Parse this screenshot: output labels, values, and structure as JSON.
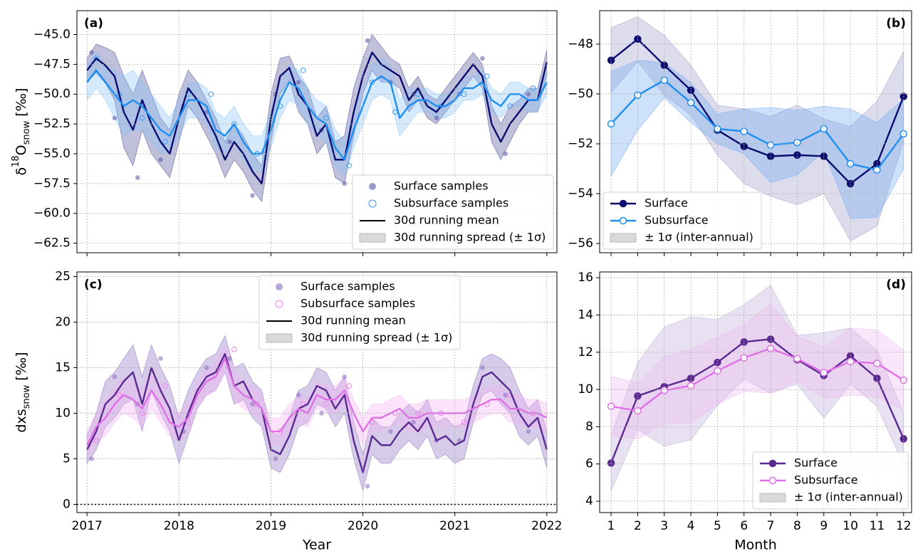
{
  "chart_data": [
    {
      "type": "line",
      "panel": "(a)",
      "ylabel": {
        "main": "δ",
        "sup": "18",
        "base": "O",
        "sub": "snow",
        "unit": "[‰]"
      },
      "xlim": [
        2016.89,
        2022.11
      ],
      "ylim": [
        -63.3,
        -43.0
      ],
      "xticks": [
        2017,
        2018,
        2019,
        2020,
        2021,
        2022
      ],
      "yticks": [
        {
          "value": -62.5,
          "label": "−62.5"
        },
        {
          "value": -60,
          "label": "−60.0"
        },
        {
          "value": -57.5,
          "label": "−57.5"
        },
        {
          "value": -55,
          "label": "−55.0"
        },
        {
          "value": -52.5,
          "label": "−52.5"
        },
        {
          "value": -50,
          "label": "−50.0"
        },
        {
          "value": -47.5,
          "label": "−47.5"
        },
        {
          "value": -45,
          "label": "−45.0"
        }
      ],
      "grid": true,
      "legend": "lower right",
      "mean_label": "30d running mean",
      "spread_label": "30d running spread (± 1σ)",
      "samples": [
        {
          "name": "Surface samples",
          "color": "#5a55a8",
          "marker": "filled",
          "x": [
            2017.05,
            2017.3,
            2017.55,
            2017.8,
            2018.05,
            2018.3,
            2018.55,
            2018.8,
            2019.05,
            2019.3,
            2019.55,
            2019.8,
            2020.05,
            2020.3,
            2020.55,
            2020.8,
            2021.05,
            2021.3,
            2021.55,
            2021.8
          ],
          "values": [
            -46.5,
            -52,
            -57,
            -55.5,
            -51,
            -51.5,
            -54,
            -58.5,
            -50,
            -49,
            -53,
            -57.5,
            -45.5,
            -49,
            -50,
            -52,
            -50,
            -47,
            -55,
            -50
          ]
        },
        {
          "name": "Subsurface samples",
          "color": "#3a9cf0",
          "marker": "open",
          "x": [
            2017.1,
            2017.35,
            2017.6,
            2017.85,
            2018.1,
            2018.35,
            2018.6,
            2018.85,
            2019.1,
            2019.35,
            2019.6,
            2019.85,
            2020.1,
            2020.35,
            2020.6,
            2020.85,
            2021.1,
            2021.35,
            2021.6,
            2021.85
          ],
          "values": [
            -47,
            -50,
            -52,
            -54,
            -50,
            -50,
            -52.5,
            -55,
            -51,
            -48,
            -52,
            -56,
            -49,
            -51.5,
            -50,
            -51,
            -50,
            -48.5,
            -51,
            -49.5
          ]
        }
      ],
      "x": [
        2017.0,
        2017.1,
        2017.2,
        2017.3,
        2017.4,
        2017.5,
        2017.6,
        2017.7,
        2017.8,
        2017.9,
        2018.0,
        2018.1,
        2018.2,
        2018.3,
        2018.4,
        2018.5,
        2018.6,
        2018.7,
        2018.8,
        2018.9,
        2019.0,
        2019.1,
        2019.2,
        2019.3,
        2019.4,
        2019.5,
        2019.6,
        2019.7,
        2019.8,
        2019.9,
        2020.0,
        2020.1,
        2020.2,
        2020.3,
        2020.4,
        2020.5,
        2020.6,
        2020.7,
        2020.8,
        2020.9,
        2021.0,
        2021.1,
        2021.2,
        2021.3,
        2021.4,
        2021.5,
        2021.6,
        2021.7,
        2021.8,
        2021.9,
        2022.0
      ],
      "series": [
        {
          "color": "#0c0c6e",
          "band_color": "#4a4a99",
          "values": [
            -48.0,
            -47.0,
            -47.6,
            -48.5,
            -51.5,
            -53.0,
            -50.5,
            -52.5,
            -54.0,
            -55.0,
            -52.0,
            -49.5,
            -50.5,
            -52.0,
            -53.5,
            -55.5,
            -54.0,
            -55.0,
            -56.5,
            -57.5,
            -52.0,
            -48.5,
            -47.8,
            -50.0,
            -51.0,
            -53.5,
            -52.5,
            -55.5,
            -55.5,
            -51.5,
            -48.5,
            -46.5,
            -47.5,
            -48.0,
            -48.5,
            -50.5,
            -49.5,
            -51.0,
            -51.5,
            -50.5,
            -49.5,
            -48.5,
            -47.5,
            -48.5,
            -52.5,
            -54.0,
            -52.5,
            -51.5,
            -50.5,
            -50.5,
            -47.3
          ],
          "sigma": [
            1.0,
            1.2,
            1.5,
            2.0,
            3.0,
            3.0,
            2.5,
            2.5,
            2.0,
            2.0,
            2.0,
            1.5,
            1.5,
            1.5,
            1.5,
            1.5,
            1.5,
            1.5,
            1.5,
            1.5,
            2.0,
            1.5,
            1.0,
            1.5,
            1.5,
            1.5,
            1.5,
            1.5,
            2.0,
            2.0,
            1.5,
            1.5,
            1.5,
            1.0,
            1.0,
            1.0,
            1.0,
            1.0,
            1.0,
            1.0,
            1.0,
            1.0,
            1.0,
            1.0,
            1.5,
            1.5,
            1.5,
            1.0,
            1.0,
            1.0,
            1.0
          ]
        },
        {
          "color": "#1e8ff0",
          "band_color": "#87c4f5",
          "values": [
            -49.0,
            -48.0,
            -49.0,
            -50.0,
            -51.0,
            -50.5,
            -51.0,
            -52.0,
            -53.0,
            -53.5,
            -52.0,
            -50.5,
            -50.5,
            -51.0,
            -53.0,
            -53.5,
            -52.5,
            -54.0,
            -55.0,
            -55.0,
            -53.0,
            -50.5,
            -49.0,
            -49.5,
            -51.0,
            -52.0,
            -52.5,
            -54.5,
            -55.5,
            -53.0,
            -51.0,
            -49.0,
            -48.5,
            -49.0,
            -52.0,
            -51.0,
            -50.5,
            -50.5,
            -51.0,
            -51.0,
            -50.5,
            -49.5,
            -49.5,
            -49.0,
            -50.5,
            -51.0,
            -50.0,
            -50.0,
            -50.5,
            -50.5,
            -49.0
          ],
          "sigma": [
            1.5,
            1.5,
            1.5,
            2.0,
            2.5,
            2.5,
            2.0,
            2.0,
            2.0,
            1.5,
            1.5,
            1.5,
            1.5,
            1.5,
            1.5,
            1.5,
            1.5,
            1.5,
            1.5,
            1.5,
            1.5,
            1.5,
            1.5,
            1.5,
            1.5,
            1.5,
            1.5,
            1.5,
            1.5,
            1.5,
            1.5,
            1.5,
            1.5,
            1.5,
            1.5,
            1.5,
            1.0,
            1.0,
            1.0,
            1.0,
            1.0,
            1.0,
            1.0,
            1.0,
            1.0,
            1.0,
            1.0,
            1.0,
            1.0,
            1.0,
            1.0
          ]
        }
      ]
    },
    {
      "type": "line",
      "panel": "(b)",
      "xlim": [
        0.57,
        12.3
      ],
      "ylim": [
        -56.37,
        -46.66
      ],
      "xticks": [
        1,
        2,
        3,
        4,
        5,
        6,
        7,
        8,
        9,
        10,
        11,
        12
      ],
      "yticks": [
        {
          "value": -56,
          "label": "−56"
        },
        {
          "value": -54,
          "label": "−54"
        },
        {
          "value": -52,
          "label": "−52"
        },
        {
          "value": -50,
          "label": "−50"
        },
        {
          "value": -48,
          "label": "−48"
        }
      ],
      "grid": true,
      "legend": "lower left",
      "band_label": "± 1σ (inter-annual)",
      "x": [
        1,
        2,
        3,
        4,
        5,
        6,
        7,
        8,
        9,
        10,
        11,
        12
      ],
      "series": [
        {
          "name": "Surface",
          "color": "#0c0c6e",
          "band_color": "#9c9cc8",
          "marker": "filled",
          "values": [
            -48.65,
            -47.8,
            -48.85,
            -49.85,
            -51.45,
            -52.1,
            -52.5,
            -52.45,
            -52.5,
            -53.6,
            -52.8,
            -50.1
          ],
          "sigma": [
            1.3,
            0.9,
            1.2,
            1.0,
            1.0,
            1.5,
            1.6,
            2.0,
            1.5,
            2.3,
            2.5,
            1.8
          ]
        },
        {
          "name": "Subsurface",
          "color": "#1e8ff0",
          "band_color": "#6fa8f0",
          "marker": "open",
          "values": [
            -51.2,
            -50.05,
            -49.45,
            -50.35,
            -51.4,
            -51.5,
            -52.05,
            -51.95,
            -51.4,
            -52.8,
            -53.05,
            -51.6
          ],
          "sigma": [
            2.1,
            1.4,
            0.7,
            0.8,
            0.6,
            0.9,
            1.5,
            1.3,
            0.9,
            2.2,
            1.9,
            1.4
          ]
        }
      ]
    },
    {
      "type": "line",
      "panel": "(c)",
      "xlabel": "Year",
      "ylabel": {
        "main": "dxs",
        "sub": "snow",
        "unit": "[‰]"
      },
      "xlim": [
        2016.89,
        2022.11
      ],
      "ylim": [
        -0.9,
        25.5
      ],
      "xticks": [
        2017,
        2018,
        2019,
        2020,
        2021,
        2022
      ],
      "yticks": [
        0,
        5,
        10,
        15,
        20,
        25
      ],
      "grid": true,
      "hline": 0,
      "legend": "upper center",
      "mean_label": "30d running mean",
      "spread_label": "30d running spread (± 1σ)",
      "samples": [
        {
          "name": "Surface samples",
          "color": "#8a6cc0",
          "marker": "filled",
          "x": [
            2017.05,
            2017.3,
            2017.55,
            2017.8,
            2018.05,
            2018.3,
            2018.55,
            2018.8,
            2019.05,
            2019.3,
            2019.55,
            2019.8,
            2020.05,
            2020.3,
            2020.55,
            2020.8,
            2021.05,
            2021.3,
            2021.55,
            2021.8
          ],
          "values": [
            5,
            14,
            11,
            16,
            8,
            15,
            16,
            11,
            5,
            12,
            10,
            14,
            2,
            8,
            9,
            7,
            7,
            15,
            12,
            8
          ]
        },
        {
          "name": "Subsurface samples",
          "color": "#ee82ee",
          "marker": "open",
          "x": [
            2017.1,
            2017.35,
            2017.6,
            2017.85,
            2018.1,
            2018.35,
            2018.6,
            2018.85,
            2019.1,
            2019.35,
            2019.6,
            2019.85,
            2020.1,
            2020.35,
            2020.6,
            2020.85,
            2021.1,
            2021.35,
            2021.6,
            2021.85
          ],
          "values": [
            7,
            12,
            10,
            13,
            9,
            14,
            17,
            11,
            8,
            11,
            11,
            13,
            9,
            10,
            10,
            10,
            9,
            11,
            12,
            10
          ]
        }
      ],
      "x": [
        2017.0,
        2017.1,
        2017.2,
        2017.3,
        2017.4,
        2017.5,
        2017.6,
        2017.7,
        2017.8,
        2017.9,
        2018.0,
        2018.1,
        2018.2,
        2018.3,
        2018.4,
        2018.5,
        2018.6,
        2018.7,
        2018.8,
        2018.9,
        2019.0,
        2019.1,
        2019.2,
        2019.3,
        2019.4,
        2019.5,
        2019.6,
        2019.7,
        2019.8,
        2019.9,
        2020.0,
        2020.1,
        2020.2,
        2020.3,
        2020.4,
        2020.5,
        2020.6,
        2020.7,
        2020.8,
        2020.9,
        2021.0,
        2021.1,
        2021.2,
        2021.3,
        2021.4,
        2021.5,
        2021.6,
        2021.7,
        2021.8,
        2021.9,
        2022.0
      ],
      "series": [
        {
          "color": "#5b2a91",
          "band_color": "#8a6cc0",
          "values": [
            6.0,
            8.0,
            11.0,
            12.0,
            13.5,
            14.5,
            11.0,
            15.0,
            12.5,
            10.5,
            7.0,
            10.0,
            12.5,
            14.0,
            14.5,
            16.5,
            13.0,
            13.5,
            11.5,
            10.5,
            6.0,
            5.5,
            7.5,
            10.5,
            11.0,
            13.0,
            12.5,
            10.5,
            12.0,
            7.0,
            3.5,
            7.5,
            6.5,
            6.5,
            8.0,
            9.0,
            8.0,
            9.5,
            7.0,
            7.5,
            6.5,
            7.0,
            11.0,
            14.0,
            14.5,
            13.5,
            12.5,
            10.0,
            8.5,
            9.5,
            6.0
          ],
          "sigma": [
            1.5,
            2.0,
            2.5,
            2.5,
            2.5,
            3.0,
            3.0,
            2.5,
            2.5,
            2.5,
            2.5,
            2.5,
            2.0,
            2.0,
            2.0,
            2.0,
            2.0,
            2.0,
            2.0,
            2.0,
            2.0,
            2.0,
            2.0,
            2.0,
            2.0,
            2.0,
            2.0,
            2.0,
            2.0,
            2.0,
            2.0,
            2.0,
            2.0,
            2.0,
            2.0,
            2.0,
            2.0,
            2.0,
            2.0,
            2.0,
            2.0,
            2.0,
            2.0,
            2.0,
            2.0,
            2.5,
            2.5,
            2.5,
            2.0,
            2.0,
            2.0
          ]
        },
        {
          "color": "#e070e6",
          "band_color": "#f3b3f3",
          "values": [
            6.5,
            8.5,
            9.5,
            11.0,
            12.0,
            11.5,
            10.5,
            12.5,
            11.0,
            9.0,
            8.5,
            9.5,
            12.0,
            13.5,
            14.0,
            16.0,
            13.0,
            12.0,
            11.5,
            10.5,
            8.0,
            8.0,
            9.5,
            10.5,
            10.0,
            12.0,
            11.5,
            11.5,
            12.5,
            10.0,
            8.0,
            9.5,
            9.5,
            10.0,
            10.5,
            9.5,
            9.5,
            10.0,
            10.0,
            10.0,
            10.0,
            10.0,
            10.5,
            11.0,
            11.5,
            11.5,
            10.5,
            10.5,
            10.0,
            10.0,
            9.5
          ],
          "sigma": [
            1.5,
            1.5,
            2.0,
            2.0,
            2.0,
            2.0,
            2.0,
            2.0,
            2.0,
            1.5,
            1.5,
            1.5,
            1.5,
            1.5,
            1.5,
            1.5,
            1.5,
            1.5,
            1.5,
            1.5,
            1.5,
            1.5,
            1.5,
            1.5,
            1.5,
            1.5,
            1.5,
            1.5,
            1.5,
            1.5,
            1.5,
            1.5,
            1.5,
            1.5,
            1.5,
            1.5,
            1.5,
            1.5,
            1.5,
            1.5,
            1.5,
            1.5,
            1.5,
            1.5,
            1.5,
            1.5,
            1.5,
            1.5,
            1.5,
            1.5,
            1.5
          ]
        }
      ]
    },
    {
      "type": "line",
      "panel": "(d)",
      "xlabel": "Month",
      "xlim": [
        0.57,
        12.3
      ],
      "ylim": [
        3.39,
        16.31
      ],
      "xticks": [
        1,
        2,
        3,
        4,
        5,
        6,
        7,
        8,
        9,
        10,
        11,
        12
      ],
      "yticks": [
        4,
        6,
        8,
        10,
        12,
        14,
        16
      ],
      "grid": true,
      "legend": "lower right",
      "band_label": "± 1σ (inter-annual)",
      "x": [
        1,
        2,
        3,
        4,
        5,
        6,
        7,
        8,
        9,
        10,
        11,
        12
      ],
      "series": [
        {
          "name": "Surface",
          "color": "#5b2a91",
          "band_color": "#b9a8d6",
          "marker": "filled",
          "values": [
            6.05,
            9.65,
            10.15,
            10.6,
            11.45,
            12.55,
            12.7,
            11.6,
            10.75,
            11.8,
            10.6,
            7.35
          ],
          "sigma": [
            1.5,
            1.8,
            3.2,
            3.3,
            2.3,
            2.0,
            2.9,
            1.3,
            2.3,
            1.5,
            1.5,
            1.4
          ]
        },
        {
          "name": "Subsurface",
          "color": "#e070e6",
          "band_color": "#f0b8f0",
          "marker": "open",
          "values": [
            9.1,
            8.85,
            9.95,
            10.2,
            11.0,
            11.7,
            12.2,
            11.65,
            10.9,
            11.5,
            11.4,
            10.5
          ],
          "sigma": [
            1.6,
            1.5,
            1.8,
            2.0,
            1.8,
            1.8,
            2.4,
            1.2,
            1.4,
            1.8,
            1.8,
            1.6
          ]
        }
      ]
    }
  ]
}
